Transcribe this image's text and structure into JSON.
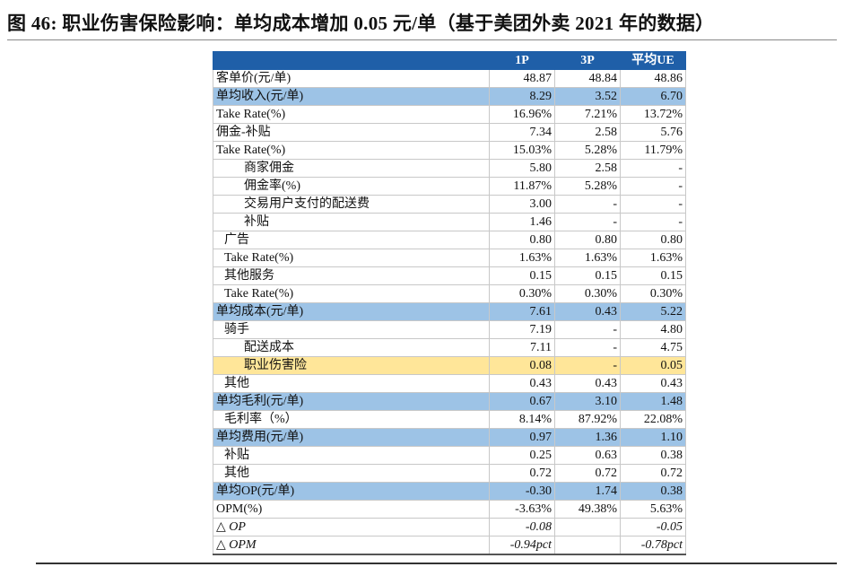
{
  "title": "图 46: 职业伤害保险影响：单均成本增加 0.05 元/单（基于美团外卖 2021 年的数据）",
  "colors": {
    "header": "#1f5fa8",
    "highlight": "#9dc3e6",
    "insurance": "#ffe699"
  },
  "table": {
    "headers": [
      "",
      "1P",
      "3P",
      "平均UE"
    ],
    "rows": [
      {
        "label": "客单价(元/单)",
        "indent": 0,
        "style": "",
        "values": [
          "48.87",
          "48.84",
          "48.86"
        ]
      },
      {
        "label": "单均收入(元/单)",
        "indent": 0,
        "style": "hl",
        "values": [
          "8.29",
          "3.52",
          "6.70"
        ]
      },
      {
        "label": "Take Rate(%)",
        "indent": 0,
        "style": "",
        "values": [
          "16.96%",
          "7.21%",
          "13.72%"
        ]
      },
      {
        "label": "佣金-补贴",
        "indent": 0,
        "style": "",
        "values": [
          "7.34",
          "2.58",
          "5.76"
        ]
      },
      {
        "label": "Take Rate(%)",
        "indent": 0,
        "style": "",
        "values": [
          "15.03%",
          "5.28%",
          "11.79%"
        ]
      },
      {
        "label": "商家佣金",
        "indent": 2,
        "style": "",
        "values": [
          "5.80",
          "2.58",
          "-"
        ]
      },
      {
        "label": "佣金率(%)",
        "indent": 2,
        "style": "",
        "values": [
          "11.87%",
          "5.28%",
          "-"
        ]
      },
      {
        "label": "交易用户支付的配送费",
        "indent": 2,
        "style": "",
        "values": [
          "3.00",
          "-",
          "-"
        ]
      },
      {
        "label": "补贴",
        "indent": 2,
        "style": "",
        "values": [
          "1.46",
          "-",
          "-"
        ]
      },
      {
        "label": "广告",
        "indent": 1,
        "style": "",
        "values": [
          "0.80",
          "0.80",
          "0.80"
        ]
      },
      {
        "label": "Take Rate(%)",
        "indent": 1,
        "style": "",
        "values": [
          "1.63%",
          "1.63%",
          "1.63%"
        ]
      },
      {
        "label": "其他服务",
        "indent": 1,
        "style": "",
        "values": [
          "0.15",
          "0.15",
          "0.15"
        ]
      },
      {
        "label": "Take Rate(%)",
        "indent": 1,
        "style": "",
        "values": [
          "0.30%",
          "0.30%",
          "0.30%"
        ]
      },
      {
        "label": "单均成本(元/单)",
        "indent": 0,
        "style": "hl",
        "values": [
          "7.61",
          "0.43",
          "5.22"
        ]
      },
      {
        "label": "骑手",
        "indent": 1,
        "style": "",
        "values": [
          "7.19",
          "-",
          "4.80"
        ]
      },
      {
        "label": "配送成本",
        "indent": 2,
        "style": "",
        "values": [
          "7.11",
          "-",
          "4.75"
        ]
      },
      {
        "label": "职业伤害险",
        "indent": 2,
        "style": "yl",
        "values": [
          "0.08",
          "-",
          "0.05"
        ]
      },
      {
        "label": "其他",
        "indent": 1,
        "style": "",
        "values": [
          "0.43",
          "0.43",
          "0.43"
        ]
      },
      {
        "label": "单均毛利(元/单)",
        "indent": 0,
        "style": "hl",
        "values": [
          "0.67",
          "3.10",
          "1.48"
        ]
      },
      {
        "label": "毛利率（%）",
        "indent": 1,
        "style": "",
        "values": [
          "8.14%",
          "87.92%",
          "22.08%"
        ]
      },
      {
        "label": "单均费用(元/单)",
        "indent": 0,
        "style": "hl",
        "values": [
          "0.97",
          "1.36",
          "1.10"
        ]
      },
      {
        "label": "补贴",
        "indent": 1,
        "style": "",
        "values": [
          "0.25",
          "0.63",
          "0.38"
        ]
      },
      {
        "label": "其他",
        "indent": 1,
        "style": "",
        "values": [
          "0.72",
          "0.72",
          "0.72"
        ]
      },
      {
        "label": "单均OP(元/单)",
        "indent": 0,
        "style": "hl",
        "values": [
          "-0.30",
          "1.74",
          "0.38"
        ]
      },
      {
        "label": "OPM(%)",
        "indent": 0,
        "style": "",
        "values": [
          "-3.63%",
          "49.38%",
          "5.63%"
        ]
      },
      {
        "label": "△ OP",
        "indent": 0,
        "style": "it",
        "values": [
          "-0.08",
          "",
          "-0.05"
        ]
      },
      {
        "label": "△ OPM",
        "indent": 0,
        "style": "it",
        "values": [
          "-0.94pct",
          "",
          "-0.78pct"
        ]
      }
    ]
  }
}
